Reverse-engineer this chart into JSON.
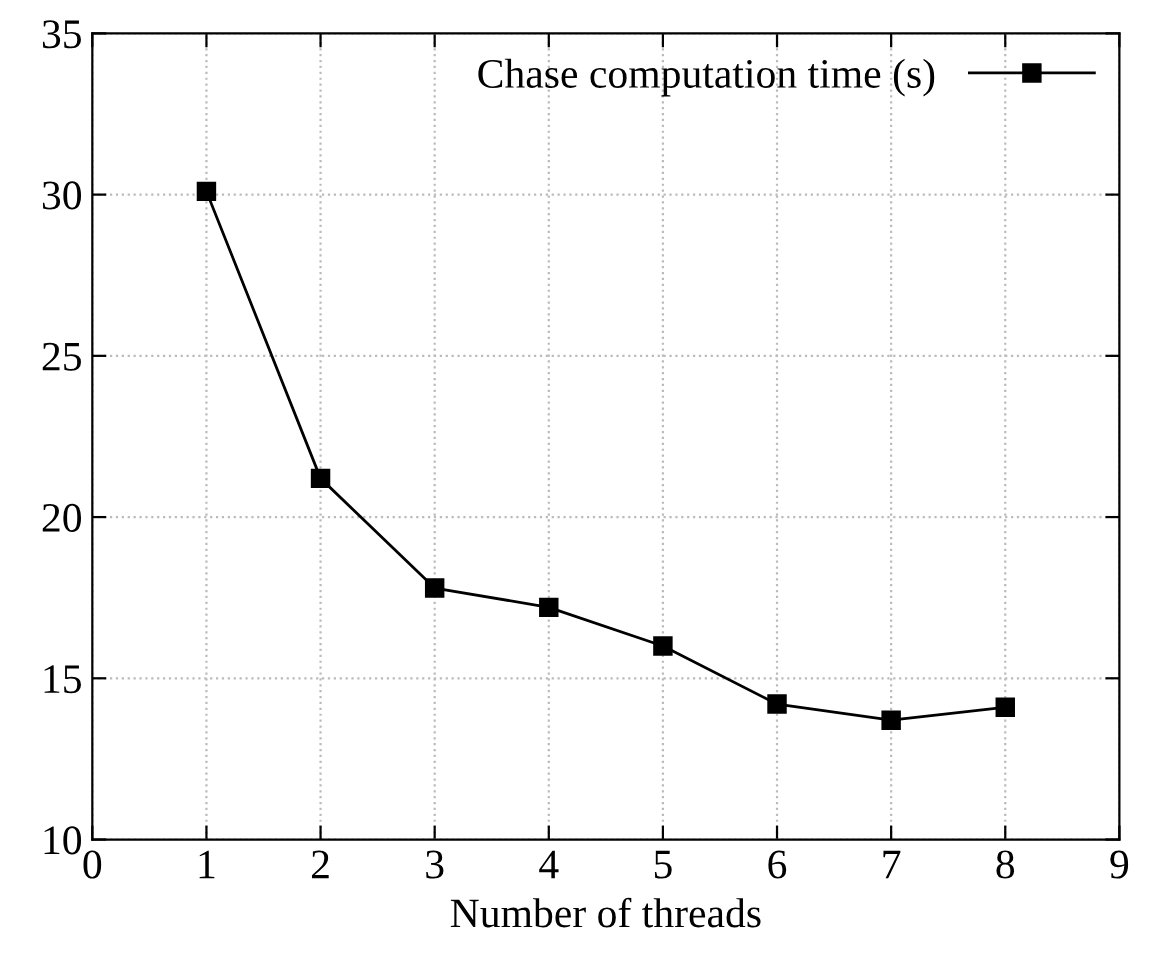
{
  "chart_data": {
    "type": "line",
    "xlabel": "Number of threads",
    "x": [
      1,
      2,
      3,
      4,
      5,
      6,
      7,
      8
    ],
    "series": [
      {
        "name": "Chase computation time (s)",
        "color": "#000000",
        "values": [
          30.1,
          21.2,
          17.8,
          17.2,
          16.0,
          14.2,
          13.7,
          14.1
        ]
      }
    ],
    "xlim": [
      0,
      9
    ],
    "xticks": [
      0,
      1,
      2,
      3,
      4,
      5,
      6,
      7,
      8,
      9
    ],
    "ylim": [
      10,
      35
    ],
    "yticks": [
      10,
      15,
      20,
      25,
      30,
      35
    ],
    "grid": true,
    "legend": "top right",
    "marker": "square",
    "line_style": "solid"
  }
}
